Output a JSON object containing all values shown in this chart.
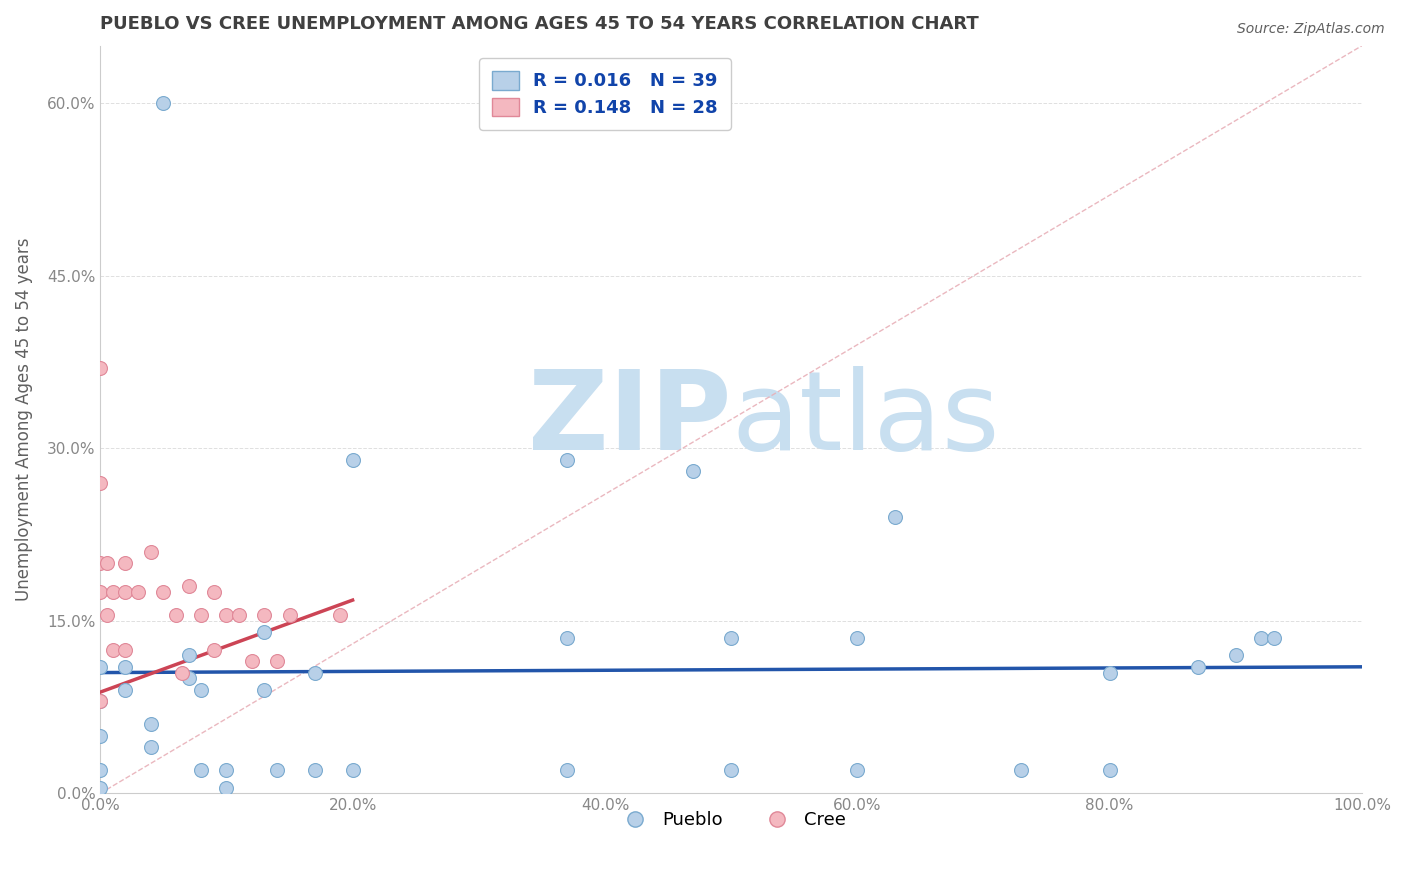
{
  "title": "PUEBLO VS CREE UNEMPLOYMENT AMONG AGES 45 TO 54 YEARS CORRELATION CHART",
  "source": "Source: ZipAtlas.com",
  "ylabel": "Unemployment Among Ages 45 to 54 years",
  "xlim": [
    0,
    1.0
  ],
  "ylim": [
    0,
    0.65
  ],
  "xticks": [
    0.0,
    0.2,
    0.4,
    0.6,
    0.8,
    1.0
  ],
  "xticklabels": [
    "0.0%",
    "20.0%",
    "40.0%",
    "60.0%",
    "80.0%",
    "100.0%"
  ],
  "yticks": [
    0.0,
    0.15,
    0.3,
    0.45,
    0.6
  ],
  "yticklabels": [
    "0.0%",
    "15.0%",
    "30.0%",
    "45.0%",
    "60.0%"
  ],
  "pueblo_color": "#b8d0e8",
  "cree_color": "#f4b8c0",
  "pueblo_edge": "#7aaacf",
  "cree_edge": "#e08898",
  "pueblo_R": 0.016,
  "pueblo_N": 39,
  "cree_R": 0.148,
  "cree_N": 28,
  "pueblo_scatter_x": [
    0.05,
    0.0,
    0.0,
    0.0,
    0.0,
    0.0,
    0.02,
    0.02,
    0.04,
    0.04,
    0.07,
    0.07,
    0.08,
    0.08,
    0.1,
    0.1,
    0.13,
    0.13,
    0.14,
    0.17,
    0.17,
    0.2,
    0.2,
    0.37,
    0.37,
    0.37,
    0.47,
    0.5,
    0.5,
    0.6,
    0.6,
    0.63,
    0.73,
    0.8,
    0.8,
    0.87,
    0.9,
    0.92,
    0.93
  ],
  "pueblo_scatter_y": [
    0.6,
    0.11,
    0.08,
    0.05,
    0.02,
    0.005,
    0.11,
    0.09,
    0.06,
    0.04,
    0.12,
    0.1,
    0.09,
    0.02,
    0.02,
    0.005,
    0.14,
    0.09,
    0.02,
    0.105,
    0.02,
    0.29,
    0.02,
    0.29,
    0.135,
    0.02,
    0.28,
    0.135,
    0.02,
    0.135,
    0.02,
    0.24,
    0.02,
    0.105,
    0.02,
    0.11,
    0.12,
    0.135,
    0.135
  ],
  "cree_scatter_x": [
    0.0,
    0.0,
    0.0,
    0.0,
    0.0,
    0.005,
    0.005,
    0.01,
    0.01,
    0.02,
    0.02,
    0.02,
    0.03,
    0.04,
    0.05,
    0.06,
    0.065,
    0.07,
    0.08,
    0.09,
    0.09,
    0.1,
    0.11,
    0.12,
    0.13,
    0.14,
    0.15,
    0.19
  ],
  "cree_scatter_y": [
    0.37,
    0.27,
    0.2,
    0.175,
    0.08,
    0.2,
    0.155,
    0.175,
    0.125,
    0.2,
    0.175,
    0.125,
    0.175,
    0.21,
    0.175,
    0.155,
    0.105,
    0.18,
    0.155,
    0.175,
    0.125,
    0.155,
    0.155,
    0.115,
    0.155,
    0.115,
    0.155,
    0.155
  ],
  "pueblo_trend_x": [
    0.0,
    1.0
  ],
  "pueblo_trend_slope": 0.005,
  "pueblo_trend_intercept": 0.105,
  "cree_trend_x_start": 0.0,
  "cree_trend_x_end": 0.2,
  "cree_trend_slope": 0.4,
  "cree_trend_intercept": 0.088,
  "diagonal_color": "#e8b0b8",
  "diagonal_style": "--",
  "pueblo_line_color": "#2255aa",
  "cree_line_color": "#cc4455",
  "watermark_zip": "ZIP",
  "watermark_atlas": "atlas",
  "watermark_color": "#c8dff0",
  "background_color": "#ffffff",
  "legend_r_color": "#1144aa",
  "grid_color": "#e0e0e0",
  "title_color": "#404040",
  "axis_label_color": "#606060",
  "tick_color": "#888888"
}
